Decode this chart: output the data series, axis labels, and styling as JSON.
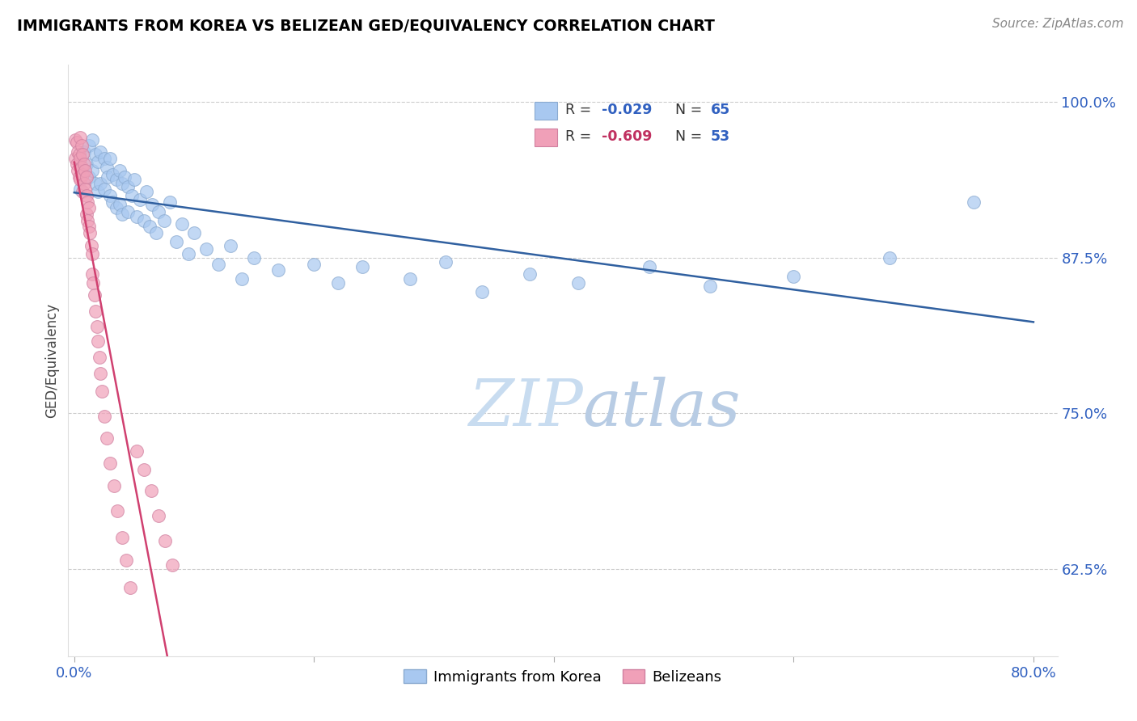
{
  "title": "IMMIGRANTS FROM KOREA VS BELIZEAN GED/EQUIVALENCY CORRELATION CHART",
  "source": "Source: ZipAtlas.com",
  "ylabel": "GED/Equivalency",
  "ylim": [
    0.555,
    1.03
  ],
  "xlim": [
    -0.005,
    0.82
  ],
  "ytick_positions": [
    0.625,
    0.75,
    0.875,
    1.0
  ],
  "ytick_labels": [
    "62.5%",
    "75.0%",
    "87.5%",
    "100.0%"
  ],
  "blue_R": -0.029,
  "blue_N": 65,
  "pink_R": -0.609,
  "pink_N": 53,
  "blue_color": "#A8C8F0",
  "pink_color": "#F0A0B8",
  "blue_line_color": "#3060A0",
  "pink_line_color": "#D04070",
  "legend_r_color_blue": "#3060C0",
  "legend_r_color_pink": "#C03060",
  "legend_n_color": "#3060C0",
  "watermark_color": "#D0E4F0",
  "grid_color": "#CCCCCC",
  "blue_x": [
    0.005,
    0.008,
    0.01,
    0.012,
    0.012,
    0.015,
    0.015,
    0.018,
    0.018,
    0.02,
    0.02,
    0.022,
    0.022,
    0.025,
    0.025,
    0.027,
    0.028,
    0.03,
    0.03,
    0.032,
    0.032,
    0.035,
    0.035,
    0.038,
    0.038,
    0.04,
    0.04,
    0.042,
    0.045,
    0.045,
    0.048,
    0.05,
    0.052,
    0.055,
    0.058,
    0.06,
    0.063,
    0.065,
    0.068,
    0.07,
    0.075,
    0.08,
    0.085,
    0.09,
    0.095,
    0.1,
    0.11,
    0.12,
    0.13,
    0.14,
    0.15,
    0.17,
    0.2,
    0.22,
    0.24,
    0.28,
    0.31,
    0.34,
    0.38,
    0.42,
    0.48,
    0.53,
    0.6,
    0.68,
    0.75
  ],
  "blue_y": [
    0.93,
    0.96,
    0.95,
    0.965,
    0.94,
    0.97,
    0.945,
    0.958,
    0.935,
    0.952,
    0.928,
    0.96,
    0.935,
    0.955,
    0.93,
    0.948,
    0.94,
    0.955,
    0.925,
    0.942,
    0.92,
    0.938,
    0.915,
    0.945,
    0.918,
    0.935,
    0.91,
    0.94,
    0.932,
    0.912,
    0.925,
    0.938,
    0.908,
    0.922,
    0.905,
    0.928,
    0.9,
    0.918,
    0.895,
    0.912,
    0.905,
    0.92,
    0.888,
    0.902,
    0.878,
    0.895,
    0.882,
    0.87,
    0.885,
    0.858,
    0.875,
    0.865,
    0.87,
    0.855,
    0.868,
    0.858,
    0.872,
    0.848,
    0.862,
    0.855,
    0.868,
    0.852,
    0.86,
    0.875,
    0.92
  ],
  "pink_x": [
    0.001,
    0.001,
    0.002,
    0.002,
    0.003,
    0.003,
    0.004,
    0.004,
    0.005,
    0.005,
    0.005,
    0.006,
    0.006,
    0.007,
    0.007,
    0.007,
    0.008,
    0.008,
    0.009,
    0.009,
    0.01,
    0.01,
    0.01,
    0.011,
    0.011,
    0.012,
    0.012,
    0.013,
    0.014,
    0.015,
    0.015,
    0.016,
    0.017,
    0.018,
    0.019,
    0.02,
    0.021,
    0.022,
    0.023,
    0.025,
    0.027,
    0.03,
    0.033,
    0.036,
    0.04,
    0.043,
    0.047,
    0.052,
    0.058,
    0.064,
    0.07,
    0.076,
    0.082
  ],
  "pink_y": [
    0.97,
    0.955,
    0.968,
    0.95,
    0.96,
    0.945,
    0.958,
    0.94,
    0.972,
    0.955,
    0.938,
    0.965,
    0.948,
    0.958,
    0.942,
    0.928,
    0.95,
    0.935,
    0.945,
    0.93,
    0.94,
    0.925,
    0.91,
    0.92,
    0.905,
    0.915,
    0.9,
    0.895,
    0.885,
    0.878,
    0.862,
    0.855,
    0.845,
    0.832,
    0.82,
    0.808,
    0.795,
    0.782,
    0.768,
    0.748,
    0.73,
    0.71,
    0.692,
    0.672,
    0.65,
    0.632,
    0.61,
    0.72,
    0.705,
    0.688,
    0.668,
    0.648,
    0.628
  ]
}
